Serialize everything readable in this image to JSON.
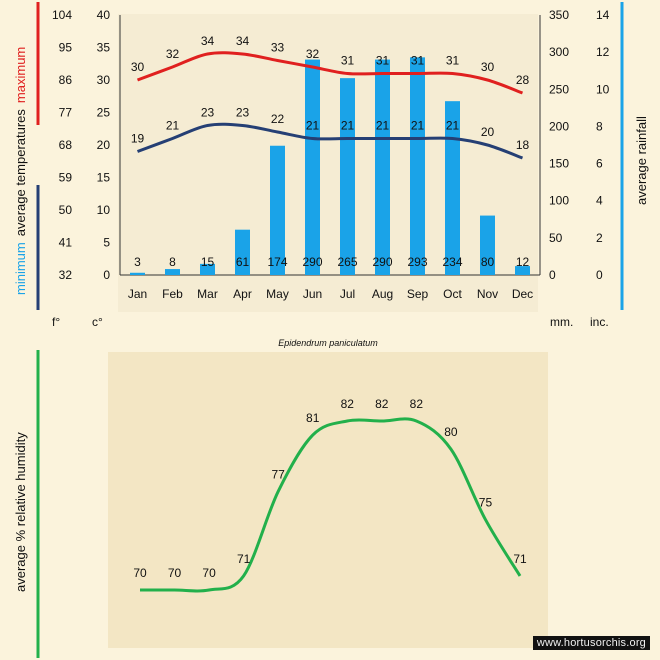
{
  "colors": {
    "max_line": "#e0201f",
    "min_line": "#253f74",
    "rain_bar": "#1aa3e8",
    "humidity_line": "#22b04b",
    "panel_bg": "#f5ecd3"
  },
  "caption": "Epidendrum paniculatum",
  "watermark": "www.hortusorchis.org",
  "chart_data": [
    {
      "type": "line",
      "categories": [
        "Jan",
        "Feb",
        "Mar",
        "Apr",
        "May",
        "Jun",
        "Jul",
        "Aug",
        "Sep",
        "Oct",
        "Nov",
        "Dec"
      ],
      "ylim_c": [
        0,
        40
      ],
      "ylim_f": [
        32,
        104
      ],
      "ylim_mm": [
        0,
        350
      ],
      "ylim_inc": [
        0,
        14
      ],
      "c_ticks": [
        0,
        5,
        10,
        15,
        20,
        25,
        30,
        35,
        40
      ],
      "f_ticks": [
        32,
        41,
        50,
        59,
        68,
        77,
        86,
        95,
        104
      ],
      "mm_ticks": [
        0,
        50,
        100,
        150,
        200,
        250,
        300,
        350
      ],
      "inc_ticks": [
        0,
        2,
        4,
        6,
        8,
        10,
        12,
        14
      ],
      "labels": {
        "maximum": "maximum",
        "minimum": "minimum",
        "average_temperatures": "average  temperatures",
        "average_rainfall": "average rainfall",
        "unit_f": "f°",
        "unit_c": "c°",
        "unit_mm": "mm.",
        "unit_inc": "inc."
      },
      "series": [
        {
          "name": "maximum",
          "values": [
            30,
            32,
            34,
            34,
            33,
            32,
            31,
            31,
            31,
            31,
            30,
            28
          ]
        },
        {
          "name": "minimum",
          "values": [
            19,
            21,
            23,
            23,
            22,
            21,
            21,
            21,
            21,
            21,
            20,
            18
          ]
        }
      ],
      "rainfall_mm": [
        3,
        8,
        15,
        61,
        174,
        290,
        265,
        290,
        293,
        234,
        80,
        12
      ]
    },
    {
      "type": "line",
      "categories": [
        "Jan",
        "Feb",
        "Mar",
        "Apr",
        "May",
        "Jun",
        "Jul",
        "Aug",
        "Sep",
        "Oct",
        "Nov",
        "Dec"
      ],
      "ylim": [
        68,
        84
      ],
      "ylabel": "average %  relative humidity",
      "values": [
        70,
        70,
        70,
        71,
        77,
        81,
        82,
        82,
        82,
        80,
        75,
        71
      ]
    }
  ]
}
